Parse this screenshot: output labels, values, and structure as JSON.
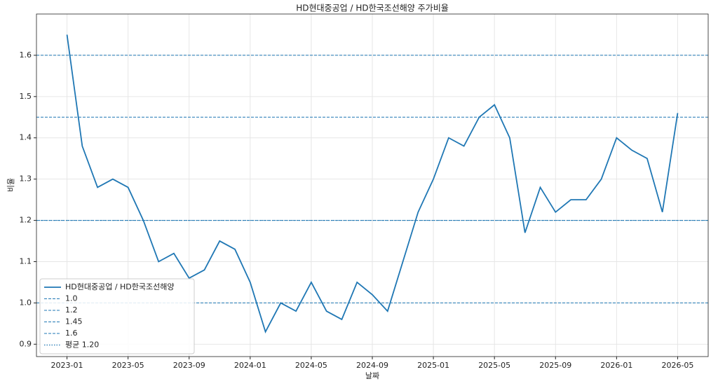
{
  "chart_data": {
    "type": "line",
    "title": "HD현대중공업 / HD한국조선해양 주가비율",
    "x_label": "날짜",
    "y_label": "비율",
    "x": [
      "2023-01",
      "2023-02",
      "2023-03",
      "2023-04",
      "2023-05",
      "2023-06",
      "2023-07",
      "2023-08",
      "2023-09",
      "2023-10",
      "2023-11",
      "2023-12",
      "2024-01",
      "2024-02",
      "2024-03",
      "2024-04",
      "2024-05",
      "2024-06",
      "2024-07",
      "2024-08",
      "2024-09",
      "2024-10",
      "2024-11",
      "2024-12",
      "2025-01",
      "2025-02",
      "2025-03",
      "2025-04",
      "2025-05",
      "2025-06",
      "2025-07",
      "2025-08",
      "2025-09",
      "2025-10",
      "2025-11",
      "2025-12",
      "2026-01",
      "2026-02",
      "2026-03",
      "2026-04",
      "2026-05"
    ],
    "series": [
      {
        "name": "HD현대중공업 / HD한국조선해양",
        "color": "#1f77b4",
        "values": [
          1.65,
          1.38,
          1.28,
          1.3,
          1.28,
          1.2,
          1.1,
          1.12,
          1.06,
          1.08,
          1.15,
          1.13,
          1.05,
          0.93,
          1.0,
          0.98,
          1.05,
          0.98,
          0.96,
          1.05,
          1.02,
          0.98,
          1.1,
          1.22,
          1.3,
          1.4,
          1.38,
          1.45,
          1.48,
          1.4,
          1.17,
          1.28,
          1.22,
          1.25,
          1.25,
          1.3,
          1.4,
          1.37,
          1.35,
          1.22,
          1.46
        ]
      }
    ],
    "reference_lines": [
      {
        "value": 1.0,
        "label": "1.0"
      },
      {
        "value": 1.2,
        "label": "1.2"
      },
      {
        "value": 1.45,
        "label": "1.45"
      },
      {
        "value": 1.6,
        "label": "1.6"
      }
    ],
    "mean_line": {
      "value": 1.2,
      "label": "평균 1.20"
    },
    "xlim": [
      "2022-11",
      "2026-07"
    ],
    "xticks": [
      "2023-01",
      "2023-05",
      "2023-09",
      "2024-01",
      "2024-05",
      "2024-09",
      "2025-01",
      "2025-05",
      "2025-09",
      "2026-01",
      "2026-05"
    ],
    "ylim": [
      0.87,
      1.7
    ],
    "yticks": [
      0.9,
      {
        "value": 1.0,
        "label": "1.0"
      },
      1.1,
      1.2,
      1.3,
      1.4,
      1.5,
      1.6
    ],
    "grid": true,
    "legend": "lower left"
  }
}
